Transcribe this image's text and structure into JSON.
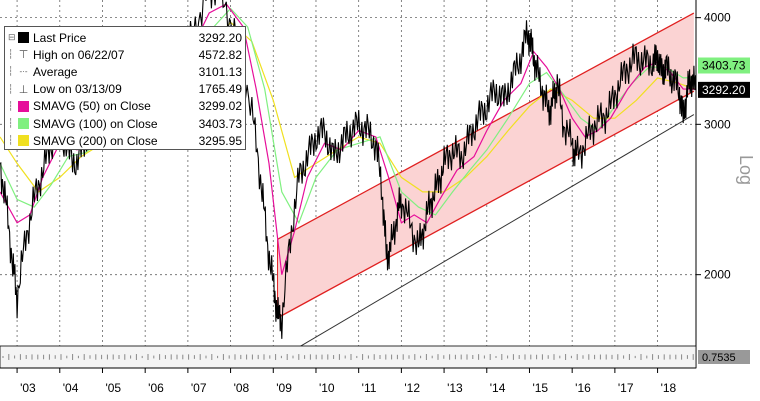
{
  "chart_data": {
    "type": "line",
    "title": "",
    "ylabel": "Log",
    "yscale": "log",
    "ylim": [
      1650,
      4150
    ],
    "xlim": [
      2002.6,
      2018.9
    ],
    "y_ticks": [
      {
        "value": 2000,
        "label": "2000"
      },
      {
        "value": 3000,
        "label": "3000"
      },
      {
        "value": 4000,
        "label": "4000"
      }
    ],
    "x_ticks": [
      {
        "value": 2003,
        "label": "'03"
      },
      {
        "value": 2004,
        "label": "'04"
      },
      {
        "value": 2005,
        "label": "'05"
      },
      {
        "value": 2006,
        "label": "'06"
      },
      {
        "value": 2007,
        "label": "'07"
      },
      {
        "value": 2008,
        "label": "'08"
      },
      {
        "value": 2009,
        "label": "'09"
      },
      {
        "value": 2010,
        "label": "'10"
      },
      {
        "value": 2011,
        "label": "'11"
      },
      {
        "value": 2012,
        "label": "'12"
      },
      {
        "value": 2013,
        "label": "'13"
      },
      {
        "value": 2014,
        "label": "'14"
      },
      {
        "value": 2015,
        "label": "'15"
      },
      {
        "value": 2016,
        "label": "'16"
      },
      {
        "value": 2017,
        "label": "'17"
      },
      {
        "value": 2018,
        "label": "'18"
      }
    ],
    "legend": [
      {
        "label": "Last Price",
        "value": "3292.20",
        "color": "#000000",
        "marker": "square"
      },
      {
        "label": "High on 06/22/07",
        "value": "4572.82",
        "color": "#666666",
        "marker": "high"
      },
      {
        "label": "Average",
        "value": "3101.13",
        "color": "#666666",
        "marker": "avg"
      },
      {
        "label": "Low on 03/13/09",
        "value": "1765.49",
        "color": "#666666",
        "marker": "low"
      },
      {
        "label": "SMAVG (50)  on Close",
        "value": "3299.02",
        "color": "#e60e9a",
        "marker": "square"
      },
      {
        "label": "SMAVG (100)  on Close",
        "value": "3403.73",
        "color": "#80f080",
        "marker": "square"
      },
      {
        "label": "SMAVG (200)  on Close",
        "value": "3295.95",
        "color": "#f0e020",
        "marker": "square"
      }
    ],
    "value_tags": [
      {
        "text": "3292.20",
        "value": 3292.2,
        "bg": "#000000",
        "fg": "#ffffff"
      },
      {
        "text": "3403.73",
        "value": 3403.73,
        "bg": "#80f080",
        "fg": "#000000"
      }
    ],
    "lower_panel_label": "0.7535",
    "series": [
      {
        "name": "Last Price",
        "color": "#000000",
        "x": [
          2002.6,
          2002.75,
          2002.9,
          2003.0,
          2003.2,
          2003.4,
          2003.6,
          2003.8,
          2004.0,
          2004.2,
          2004.4,
          2004.6,
          2004.8,
          2005.0,
          2005.3,
          2005.6,
          2005.9,
          2006.2,
          2006.5,
          2006.8,
          2007.1,
          2007.4,
          2007.6,
          2007.9,
          2008.2,
          2008.5,
          2008.7,
          2008.85,
          2009.0,
          2009.1,
          2009.2,
          2009.4,
          2009.6,
          2009.8,
          2010.0,
          2010.2,
          2010.4,
          2010.6,
          2010.8,
          2011.0,
          2011.2,
          2011.4,
          2011.55,
          2011.65,
          2011.75,
          2011.9,
          2012.0,
          2012.2,
          2012.4,
          2012.55,
          2012.7,
          2012.85,
          2013.0,
          2013.2,
          2013.4,
          2013.6,
          2013.8,
          2014.0,
          2014.2,
          2014.4,
          2014.6,
          2014.8,
          2014.95,
          2015.05,
          2015.15,
          2015.3,
          2015.45,
          2015.55,
          2015.65,
          2015.8,
          2016.0,
          2016.1,
          2016.3,
          2016.5,
          2016.7,
          2016.9,
          2017.1,
          2017.3,
          2017.5,
          2017.7,
          2017.9,
          2018.0,
          2018.1,
          2018.2,
          2018.35,
          2018.5,
          2018.6,
          2018.7,
          2018.8,
          2018.9
        ],
        "y": [
          2700,
          2400,
          2050,
          1880,
          2200,
          2450,
          2650,
          2850,
          2950,
          2780,
          2700,
          2880,
          3000,
          3050,
          3150,
          3100,
          3250,
          3400,
          3300,
          3500,
          3800,
          4200,
          4350,
          4100,
          3700,
          3100,
          2600,
          2200,
          1950,
          1800,
          1766,
          2200,
          2600,
          2750,
          2900,
          2950,
          2750,
          2850,
          2950,
          3000,
          2950,
          2850,
          2500,
          2100,
          2150,
          2350,
          2450,
          2300,
          2150,
          2300,
          2450,
          2550,
          2700,
          2800,
          2750,
          2900,
          3050,
          3150,
          3300,
          3200,
          3400,
          3600,
          3850,
          3700,
          3500,
          3300,
          3100,
          3200,
          3350,
          3000,
          2850,
          2750,
          2850,
          3000,
          3050,
          3150,
          3350,
          3500,
          3600,
          3550,
          3550,
          3600,
          3450,
          3500,
          3400,
          3300,
          3050,
          3300,
          3400,
          3292
        ]
      },
      {
        "name": "SMAVG (50) on Close",
        "color": "#e60e9a",
        "x": [
          2002.6,
          2003.0,
          2003.3,
          2003.6,
          2004.0,
          2004.4,
          2004.8,
          2005.2,
          2005.6,
          2006.0,
          2006.5,
          2007.0,
          2007.5,
          2007.9,
          2008.3,
          2008.6,
          2008.9,
          2009.2,
          2009.5,
          2009.8,
          2010.2,
          2010.6,
          2011.0,
          2011.4,
          2011.7,
          2012.0,
          2012.3,
          2012.6,
          2012.9,
          2013.3,
          2013.7,
          2014.0,
          2014.4,
          2014.8,
          2015.1,
          2015.4,
          2015.7,
          2016.0,
          2016.3,
          2016.6,
          2016.9,
          2017.3,
          2017.7,
          2018.0,
          2018.3,
          2018.6,
          2018.9
        ],
        "y": [
          2500,
          2300,
          2350,
          2600,
          2850,
          2800,
          2850,
          3000,
          3100,
          3200,
          3350,
          3600,
          4050,
          4150,
          3900,
          3300,
          2700,
          2000,
          2250,
          2600,
          2850,
          2800,
          2950,
          2900,
          2600,
          2300,
          2350,
          2300,
          2450,
          2650,
          2750,
          2950,
          3200,
          3350,
          3650,
          3500,
          3300,
          3050,
          2900,
          2950,
          3050,
          3300,
          3500,
          3550,
          3450,
          3300,
          3299
        ]
      },
      {
        "name": "SMAVG (100) on Close",
        "color": "#80f080",
        "x": [
          2002.6,
          2003.0,
          2003.4,
          2003.8,
          2004.2,
          2004.6,
          2005.0,
          2005.5,
          2006.0,
          2006.5,
          2007.0,
          2007.5,
          2008.0,
          2008.4,
          2008.8,
          2009.2,
          2009.6,
          2010.0,
          2010.5,
          2011.0,
          2011.5,
          2012.0,
          2012.4,
          2012.8,
          2013.2,
          2013.6,
          2014.0,
          2014.5,
          2015.0,
          2015.4,
          2015.8,
          2016.2,
          2016.6,
          2017.0,
          2017.4,
          2017.8,
          2018.2,
          2018.6,
          2018.9
        ],
        "y": [
          2700,
          2450,
          2400,
          2550,
          2750,
          2780,
          2880,
          3000,
          3150,
          3300,
          3500,
          3850,
          4100,
          3900,
          3300,
          2500,
          2300,
          2600,
          2800,
          2850,
          2900,
          2500,
          2400,
          2350,
          2500,
          2650,
          2800,
          3050,
          3350,
          3450,
          3250,
          3050,
          2950,
          3150,
          3350,
          3500,
          3500,
          3400,
          3404
        ]
      },
      {
        "name": "SMAVG (200) on Close",
        "color": "#f0e020",
        "x": [
          2002.6,
          2003.0,
          2003.5,
          2004.0,
          2004.5,
          2005.0,
          2005.5,
          2006.0,
          2006.5,
          2007.0,
          2007.5,
          2008.0,
          2008.5,
          2009.0,
          2009.5,
          2010.0,
          2010.5,
          2011.0,
          2011.5,
          2012.0,
          2012.5,
          2013.0,
          2013.5,
          2014.0,
          2014.5,
          2015.0,
          2015.5,
          2016.0,
          2016.5,
          2017.0,
          2017.5,
          2018.0,
          2018.5,
          2018.9
        ],
        "y": [
          2900,
          2700,
          2500,
          2600,
          2750,
          2850,
          2950,
          3050,
          3200,
          3400,
          3700,
          3950,
          3750,
          3200,
          2600,
          2700,
          2800,
          2900,
          2850,
          2600,
          2500,
          2500,
          2600,
          2750,
          2950,
          3150,
          3300,
          3200,
          3050,
          3050,
          3200,
          3400,
          3350,
          3296
        ]
      }
    ],
    "channel": {
      "x_start": 2009.1,
      "x_end": 2018.85,
      "upper": [
        2200,
        4050
      ],
      "lower": [
        1780,
        3280
      ],
      "base": [
        1590,
        3080
      ],
      "fill_color": "#fbd3d3",
      "line_color": "#e02020",
      "base_color": "#333333"
    }
  }
}
